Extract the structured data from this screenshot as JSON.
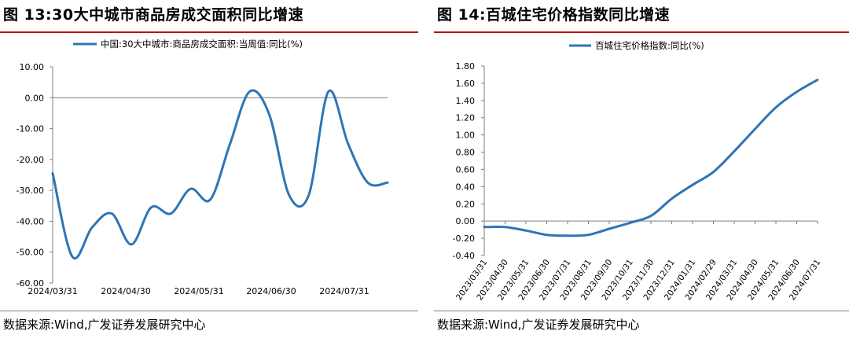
{
  "colors": {
    "line": "#2e75b6",
    "title_rule": "#c00000",
    "axis": "#7f7f7f"
  },
  "figures": [
    {
      "title": "图 13:30大中城市商品房成交面积同比增速",
      "source": "数据来源:Wind,广发证券发展研究中心",
      "chart_data": {
        "type": "line",
        "series": [
          {
            "name": "中国:30大中城市:商品房成交面积:当周值:同比(%)",
            "x": [
              "2024-03-31",
              "2024-04-07",
              "2024-04-14",
              "2024-04-21",
              "2024-04-28",
              "2024-05-05",
              "2024-05-12",
              "2024-05-19",
              "2024-05-26",
              "2024-06-02",
              "2024-06-09",
              "2024-06-16",
              "2024-06-23",
              "2024-06-30",
              "2024-07-07",
              "2024-07-14",
              "2024-07-21",
              "2024-07-28"
            ],
            "values": [
              -24.5,
              -51.5,
              -42,
              -37.5,
              -47.5,
              -35.5,
              -37.5,
              -29.5,
              -33,
              -15,
              2,
              -5.5,
              -31.5,
              -31.5,
              2,
              -15,
              -27.5,
              -27.5
            ]
          }
        ],
        "x_ticks": [
          "2024/03/31",
          "2024/04/30",
          "2024/05/31",
          "2024/06/30",
          "2024/07/31"
        ],
        "y_ticks": [
          "10.00",
          "0.00",
          "-10.00",
          "-20.00",
          "-30.00",
          "-40.00",
          "-50.00",
          "-60.00"
        ],
        "ylim": [
          -60,
          10
        ],
        "legend": "top-left"
      }
    },
    {
      "title": "图 14:百城住宅价格指数同比增速",
      "source": "数据来源:Wind,广发证券发展研究中心",
      "chart_data": {
        "type": "line",
        "series": [
          {
            "name": "百城住宅价格指数:同比(%)",
            "x": [
              "2023/03/31",
              "2023/04/30",
              "2023/05/31",
              "2023/06/30",
              "2023/07/31",
              "2023/08/31",
              "2023/09/30",
              "2023/10/31",
              "2023/11/30",
              "2023/12/31",
              "2024/01/31",
              "2024/02/29",
              "2024/03/31",
              "2024/04/30",
              "2024/05/31",
              "2024/06/30",
              "2024/07/31"
            ],
            "values": [
              -0.07,
              -0.07,
              -0.11,
              -0.16,
              -0.17,
              -0.16,
              -0.09,
              -0.02,
              0.06,
              0.26,
              0.42,
              0.57,
              0.81,
              1.07,
              1.32,
              1.5,
              1.64
            ]
          }
        ],
        "x_ticks": [
          "2023/03/31",
          "2023/04/30",
          "2023/05/31",
          "2023/06/30",
          "2023/07/31",
          "2023/08/31",
          "2023/09/30",
          "2023/10/31",
          "2023/11/30",
          "2023/12/31",
          "2024/01/31",
          "2024/02/29",
          "2024/03/31",
          "2024/04/30",
          "2024/05/31",
          "2024/06/30",
          "2024/07/31"
        ],
        "y_ticks": [
          "1.80",
          "1.60",
          "1.40",
          "1.20",
          "1.00",
          "0.80",
          "0.60",
          "0.40",
          "0.20",
          "0.00",
          "-0.20",
          "-0.40"
        ],
        "ylim": [
          -0.4,
          1.8
        ],
        "legend": "top-center"
      }
    }
  ]
}
